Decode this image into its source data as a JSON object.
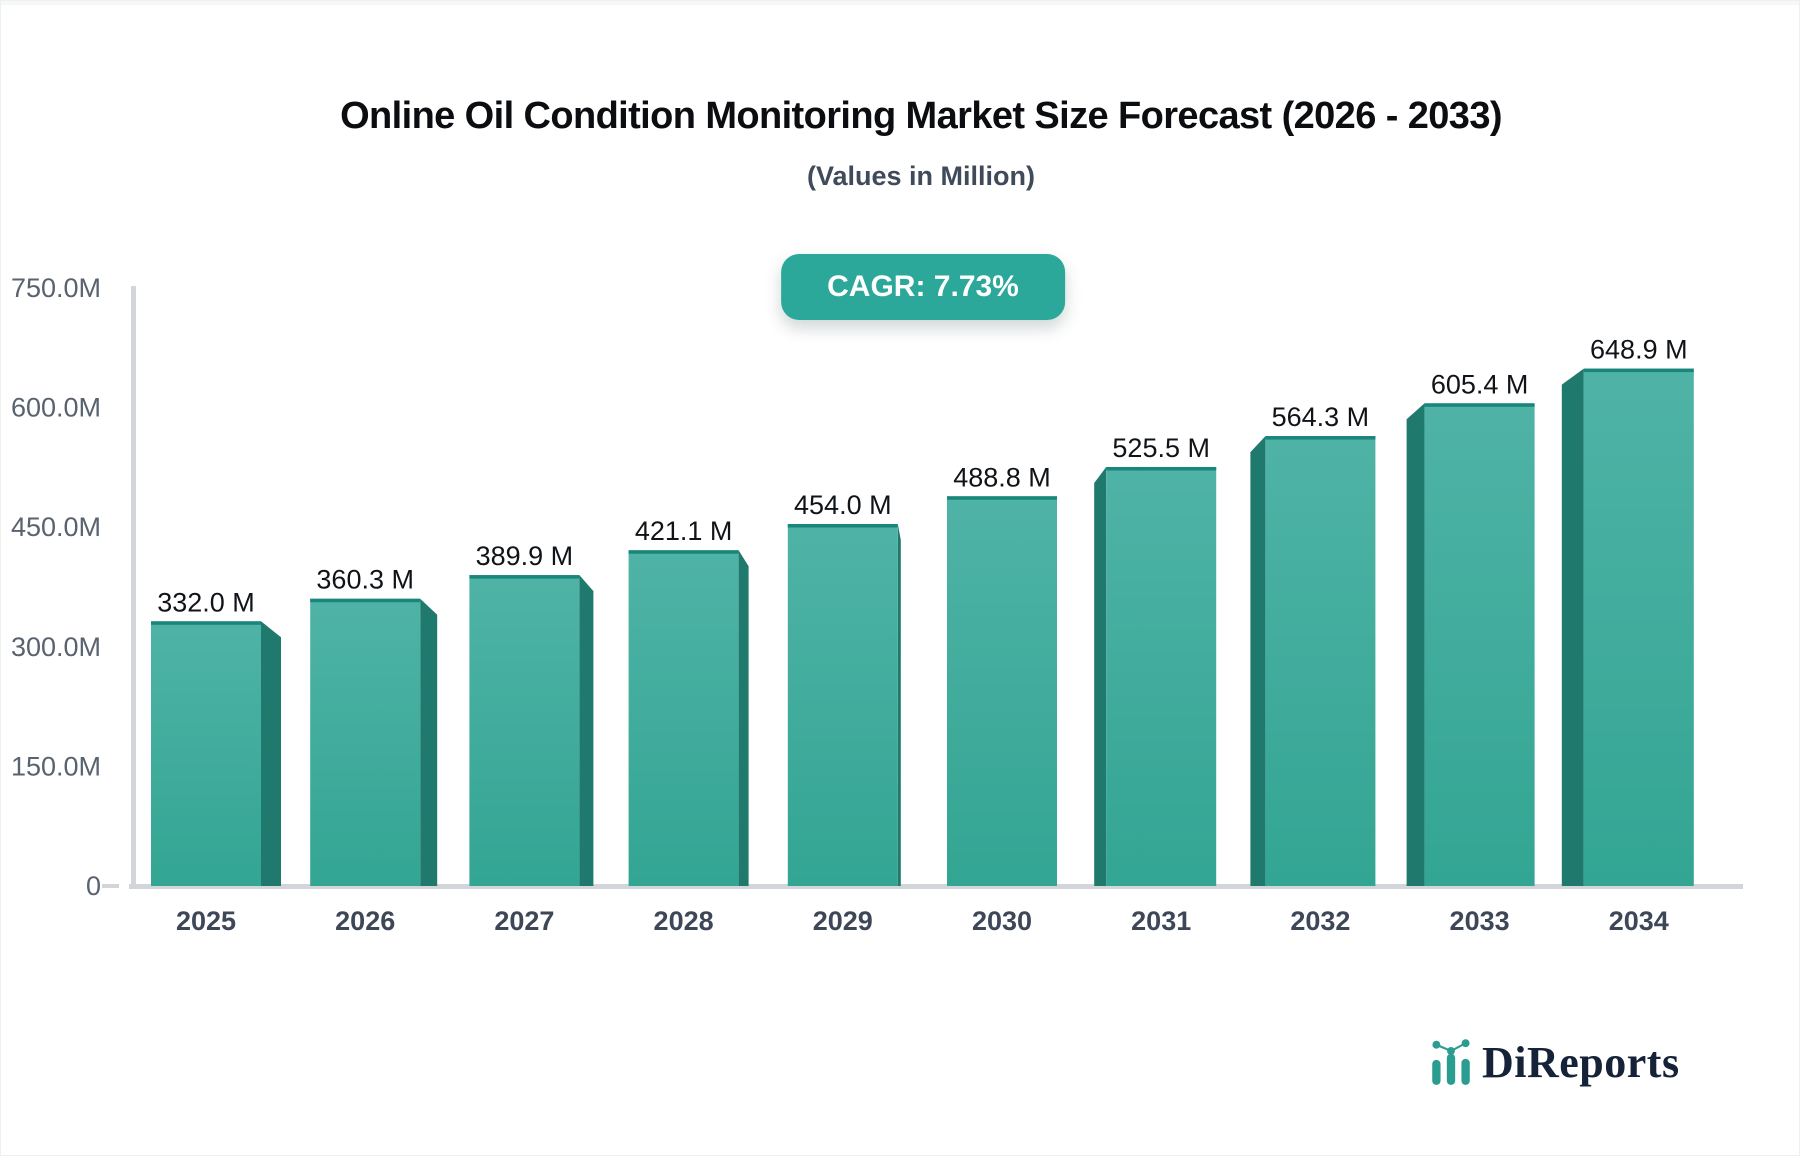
{
  "header": {
    "title": "Online Oil Condition Monitoring Market Size Forecast (2026 - 2033)",
    "subtitle": "(Values in Million)",
    "cagr_badge": "CAGR: 7.73%"
  },
  "chart_data": {
    "type": "bar",
    "title": "Online Oil Condition Monitoring Market Size Forecast (2026 - 2033)",
    "subtitle": "(Values in Million)",
    "cagr": "7.73%",
    "unit": "Million",
    "categories": [
      "2025",
      "2026",
      "2027",
      "2028",
      "2029",
      "2030",
      "2031",
      "2032",
      "2033",
      "2034"
    ],
    "values": [
      332.0,
      360.3,
      389.9,
      421.1,
      454.0,
      488.8,
      525.5,
      564.3,
      605.4,
      648.9
    ],
    "value_labels": [
      "332.0 M",
      "360.3 M",
      "389.9 M",
      "421.1 M",
      "454.0 M",
      "488.8 M",
      "525.5 M",
      "564.3 M",
      "605.4 M",
      "648.9 M"
    ],
    "y_ticks": [
      {
        "label": "750.0M",
        "value": 750
      },
      {
        "label": "600.0M",
        "value": 600
      },
      {
        "label": "450.0M",
        "value": 450
      },
      {
        "label": "300.0M",
        "value": 300
      },
      {
        "label": "150.0M",
        "value": 150
      },
      {
        "label": "0",
        "value": 0
      }
    ],
    "ylim": [
      0,
      750
    ],
    "grid": false,
    "legend": false,
    "colors": {
      "bar_face_top": "#4fb3a6",
      "bar_face_bottom": "#33a593",
      "bar_side": "#20796d",
      "bar_top_edge": "#1a8579",
      "axis_line": "#d2d6da",
      "value_label": "#101418",
      "year_label": "#3e4757",
      "y_tick_label": "#59626f"
    }
  },
  "badge": {
    "bg": "#2ba89a",
    "text_color": "#ffffff"
  },
  "logo": {
    "text": "DiReports",
    "icon_color": "#2b9c90",
    "text_color": "#152238"
  }
}
